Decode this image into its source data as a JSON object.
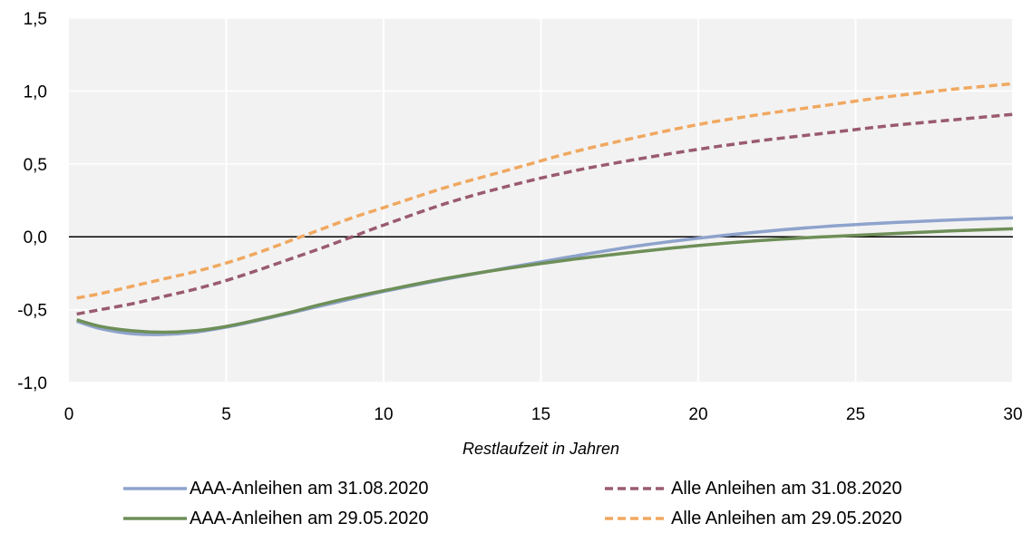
{
  "chart_data": {
    "type": "line",
    "title": "",
    "xlabel": "Restlaufzeit in Jahren",
    "ylabel": "",
    "xlim": [
      0,
      30
    ],
    "ylim": [
      -1.0,
      1.5
    ],
    "x_ticks": [
      0,
      5,
      10,
      15,
      20,
      25,
      30
    ],
    "x_tick_labels": [
      "0",
      "5",
      "10",
      "15",
      "20",
      "25",
      "30"
    ],
    "y_ticks": [
      -1.0,
      -0.5,
      0.0,
      0.5,
      1.0,
      1.5
    ],
    "y_tick_labels": [
      "-1,0",
      "-0,5",
      "0,0",
      "0,5",
      "1,0",
      "1,5"
    ],
    "grid": "vertical",
    "plot_background": "#f2f2f2",
    "legend_position": "bottom",
    "x": [
      0.25,
      1,
      2,
      3,
      4,
      5,
      6,
      7,
      8,
      9,
      10,
      12,
      14,
      16,
      18,
      20,
      22,
      24,
      26,
      28,
      30
    ],
    "series": [
      {
        "name": "AAA-Anleihen am 31.08.2020",
        "color": "#8ea3cc",
        "style": "solid",
        "values": [
          -0.58,
          -0.63,
          -0.665,
          -0.67,
          -0.655,
          -0.62,
          -0.575,
          -0.525,
          -0.475,
          -0.425,
          -0.375,
          -0.29,
          -0.21,
          -0.135,
          -0.065,
          -0.01,
          0.035,
          0.07,
          0.095,
          0.115,
          0.13
        ]
      },
      {
        "name": "AAA-Anleihen am 29.05.2020",
        "color": "#6e8f58",
        "style": "solid",
        "values": [
          -0.57,
          -0.615,
          -0.645,
          -0.655,
          -0.645,
          -0.615,
          -0.57,
          -0.52,
          -0.465,
          -0.415,
          -0.37,
          -0.285,
          -0.215,
          -0.155,
          -0.105,
          -0.06,
          -0.025,
          0.0,
          0.02,
          0.04,
          0.055
        ]
      },
      {
        "name": "Alle Anleihen am 31.08.2020",
        "color": "#9a5b6e",
        "style": "dashed",
        "values": [
          -0.53,
          -0.5,
          -0.46,
          -0.41,
          -0.36,
          -0.3,
          -0.23,
          -0.155,
          -0.08,
          0.0,
          0.08,
          0.23,
          0.35,
          0.45,
          0.53,
          0.6,
          0.66,
          0.71,
          0.76,
          0.8,
          0.84
        ]
      },
      {
        "name": "Alle Anleihen am 29.05.2020",
        "color": "#f0a860",
        "style": "dashed",
        "values": [
          -0.42,
          -0.39,
          -0.34,
          -0.29,
          -0.24,
          -0.18,
          -0.11,
          -0.03,
          0.05,
          0.13,
          0.2,
          0.34,
          0.46,
          0.58,
          0.68,
          0.77,
          0.84,
          0.9,
          0.96,
          1.01,
          1.05
        ]
      }
    ]
  }
}
